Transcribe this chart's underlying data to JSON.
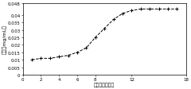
{
  "x": [
    1,
    2,
    3,
    4,
    5,
    6,
    7,
    8,
    9,
    10,
    11,
    12,
    13,
    14,
    15,
    16,
    17
  ],
  "y": [
    0.01,
    0.011,
    0.011,
    0.012,
    0.013,
    0.015,
    0.018,
    0.025,
    0.031,
    0.037,
    0.041,
    0.043,
    0.044,
    0.044,
    0.044,
    0.044,
    0.044
  ],
  "xlim": [
    0,
    18
  ],
  "ylim": [
    0,
    0.048
  ],
  "xticks": [
    0,
    2,
    4,
    6,
    8,
    12,
    18
  ],
  "xtick_labels": [
    "0",
    "2",
    "4",
    "6",
    "8",
    "12",
    "18"
  ],
  "yticks": [
    0,
    0.005,
    0.01,
    0.015,
    0.02,
    0.025,
    0.03,
    0.035,
    0.04,
    0.048
  ],
  "ytick_labels": [
    "0",
    "0.005",
    "0.01",
    "0.015",
    "0.02",
    "0.025",
    "0.03",
    "0.035",
    "0.04",
    "0.048"
  ],
  "xlabel": "培养时间（天）",
  "ylabel": "浓度（mg/mL）",
  "line_color": "#000000",
  "marker": "+",
  "marker_size": 3,
  "line_style": "--",
  "linewidth": 0.7,
  "background_color": "#ffffff",
  "tick_fontsize": 4,
  "label_fontsize": 4.5
}
